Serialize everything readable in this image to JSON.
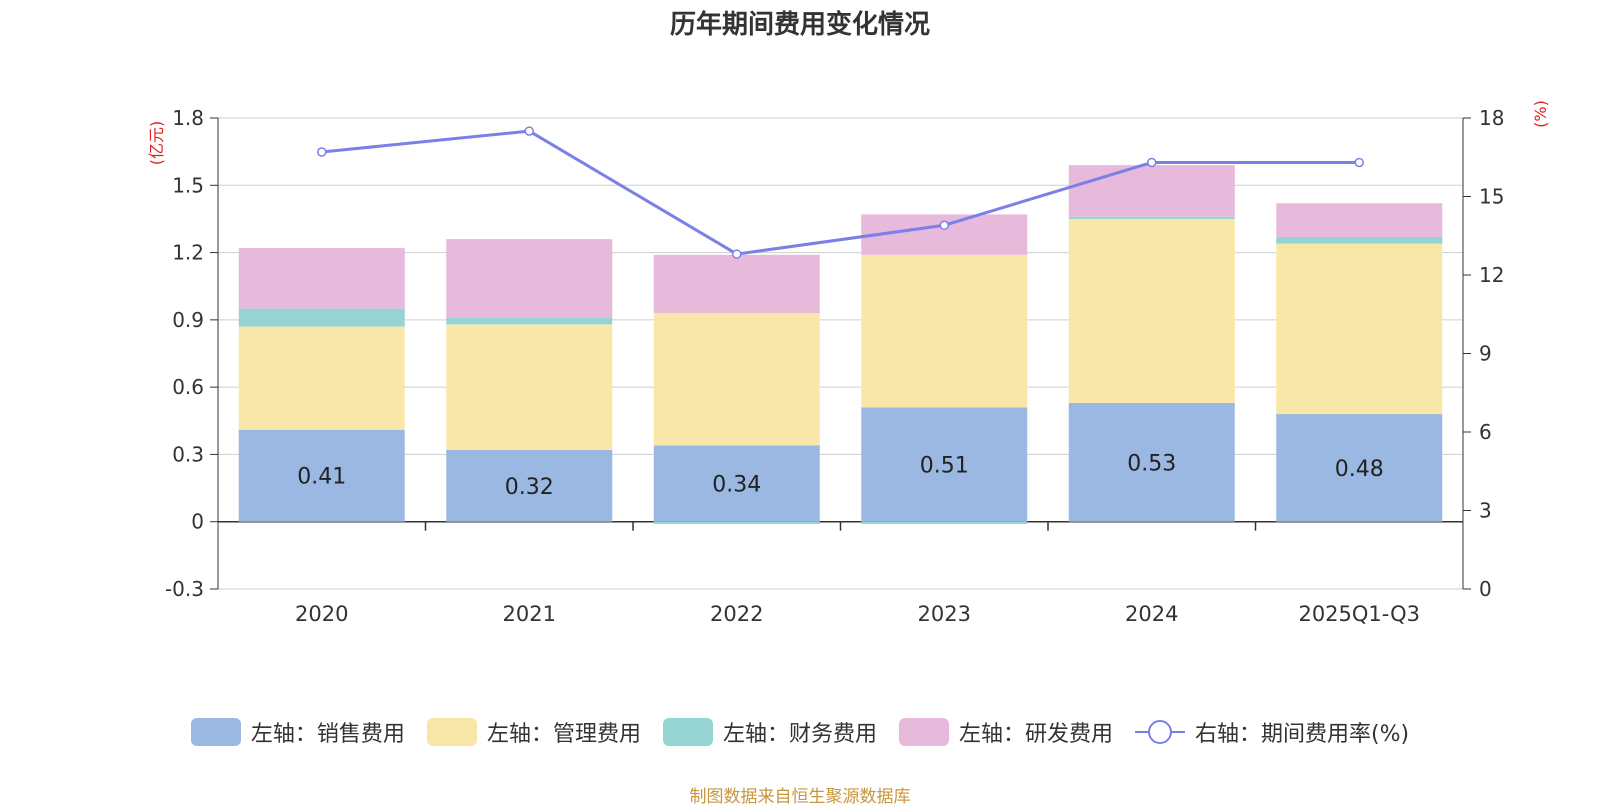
{
  "chart_data": {
    "type": "bar",
    "stacked": true,
    "title": "历年期间费用变化情况",
    "categories": [
      "2020",
      "2021",
      "2022",
      "2023",
      "2024",
      "2025Q1-Q3"
    ],
    "series": [
      {
        "name": "左轴：销售费用",
        "axis": "left",
        "color": "#9bb8e2",
        "values": [
          0.41,
          0.32,
          0.34,
          0.51,
          0.53,
          0.48
        ]
      },
      {
        "name": "左轴：管理费用",
        "axis": "left",
        "color": "#f8e7a8",
        "values": [
          0.46,
          0.56,
          0.59,
          0.68,
          0.82,
          0.76
        ]
      },
      {
        "name": "左轴：财务费用",
        "axis": "left",
        "color": "#96d4d3",
        "values": [
          0.08,
          0.03,
          -0.01,
          -0.01,
          0.01,
          0.03
        ]
      },
      {
        "name": "左轴：研发费用",
        "axis": "left",
        "color": "#e7b9da",
        "values": [
          0.27,
          0.35,
          0.26,
          0.18,
          0.23,
          0.15
        ]
      },
      {
        "name": "右轴：期间费用率(%)",
        "axis": "right",
        "type": "line",
        "color": "#7b7fe8",
        "values": [
          16.7,
          17.5,
          12.8,
          13.9,
          16.3,
          16.3
        ]
      }
    ],
    "data_labels": [
      "0.41",
      "0.32",
      "0.34",
      "0.51",
      "0.53",
      "0.48"
    ],
    "y_left": {
      "label": "(亿元)",
      "ylim": [
        -0.3,
        1.8
      ],
      "ticks": [
        "-0.3",
        "0",
        "0.3",
        "0.6",
        "0.9",
        "1.2",
        "1.5",
        "1.8"
      ]
    },
    "y_right": {
      "label": "(%)",
      "ylim": [
        0,
        18
      ],
      "ticks": [
        "0",
        "3",
        "6",
        "9",
        "12",
        "15",
        "18"
      ]
    },
    "grid": true,
    "legend": "bottom"
  },
  "source": "制图数据来自恒生聚源数据库"
}
